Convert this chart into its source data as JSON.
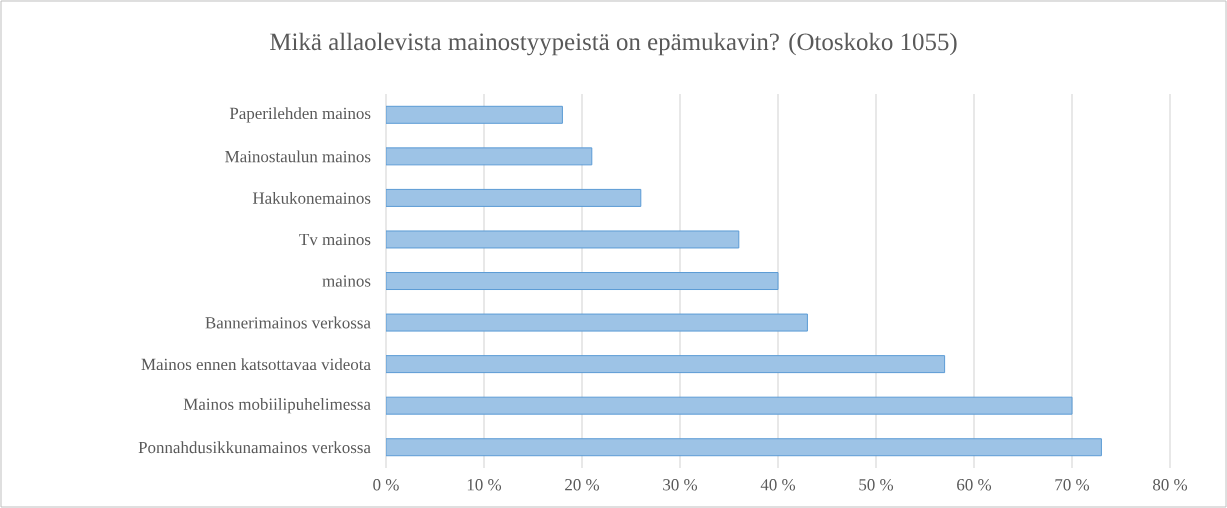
{
  "chart_data": {
    "type": "bar",
    "orientation": "horizontal",
    "title": "Mikä allaolevista mainostyypeistä on epämukavin? (Otoskoko 1055)",
    "categories": [
      "Paperilehden mainos",
      "Mainostaulun mainos",
      "Hakukonemainos",
      "Tv mainos",
      "mainos",
      "Bannerimainos verkossa",
      "Mainos ennen katsottavaa videota",
      "Mainos mobiilipuhelimessa",
      "Ponnahdusikkunamainos verkossa"
    ],
    "values": [
      18,
      21,
      26,
      36,
      40,
      43,
      57,
      70,
      73
    ],
    "color": "#9dc3e6",
    "xlim": [
      0,
      80
    ],
    "xticks": [
      {
        "value": 0,
        "label": "0 %"
      },
      {
        "value": 10,
        "label": "10 %"
      },
      {
        "value": 20,
        "label": "20 %"
      },
      {
        "value": 30,
        "label": "30 %"
      },
      {
        "value": 40,
        "label": "40 %"
      },
      {
        "value": 50,
        "label": "50 %"
      },
      {
        "value": 60,
        "label": "60 %"
      },
      {
        "value": 70,
        "label": "70 %"
      },
      {
        "value": 80,
        "label": "80 %"
      }
    ],
    "grid": "x"
  }
}
